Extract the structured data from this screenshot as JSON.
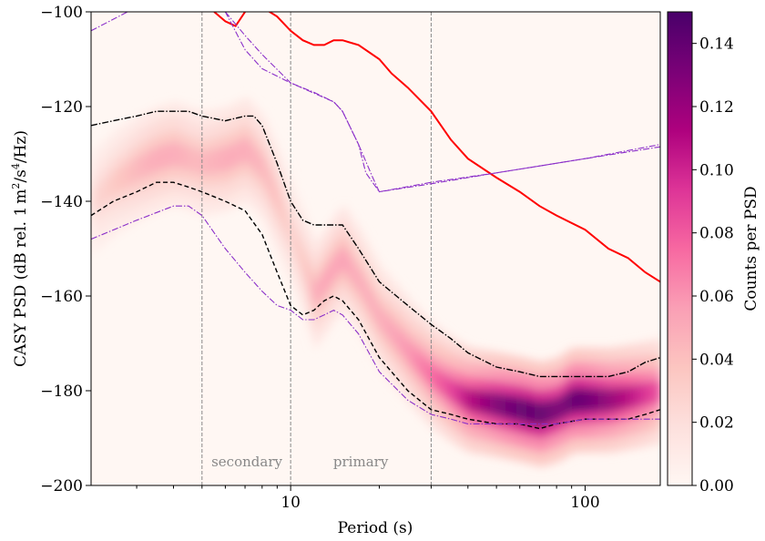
{
  "chart_data": {
    "type": "heatmap",
    "title": "",
    "xlabel": "Period (s)",
    "ylabel": "CASY PSD (dB rel. 1 m²/s⁴/Hz)",
    "ylabel_parts": {
      "prefix": "CASY PSD (dB rel. 1",
      "m": "m",
      "exp2": "2",
      "slash_s": "/s",
      "exp4": "4",
      "suffix": "/Hz)"
    },
    "x_scale": "log",
    "xlim": [
      2.1,
      180
    ],
    "ylim": [
      -200,
      -100
    ],
    "x_ticks": [
      {
        "value": 10,
        "label": "10"
      },
      {
        "value": 100,
        "label": "100"
      }
    ],
    "y_ticks": [
      {
        "value": -200,
        "label": "−200"
      },
      {
        "value": -180,
        "label": "−180"
      },
      {
        "value": -160,
        "label": "−160"
      },
      {
        "value": -140,
        "label": "−140"
      },
      {
        "value": -120,
        "label": "−120"
      },
      {
        "value": -100,
        "label": "−100"
      }
    ],
    "colorbar": {
      "label": "Counts per PSD",
      "range": [
        0,
        0.15
      ],
      "ticks": [
        {
          "value": 0.0,
          "label": "0.00"
        },
        {
          "value": 0.02,
          "label": "0.02"
        },
        {
          "value": 0.04,
          "label": "0.04"
        },
        {
          "value": 0.06,
          "label": "0.06"
        },
        {
          "value": 0.08,
          "label": "0.08"
        },
        {
          "value": 0.1,
          "label": "0.10"
        },
        {
          "value": 0.12,
          "label": "0.12"
        },
        {
          "value": 0.14,
          "label": "0.14"
        }
      ],
      "colors": [
        "#fff7f3",
        "#fde0dd",
        "#fcc5c0",
        "#fa9fb5",
        "#f768a1",
        "#dd3497",
        "#ae017e",
        "#7a0177",
        "#49006a"
      ]
    },
    "vlines": [
      5,
      10,
      30
    ],
    "annotations": [
      {
        "text": "secondary",
        "x": 7.1,
        "y": -195
      },
      {
        "text": "primary",
        "x": 17.3,
        "y": -195
      }
    ],
    "mode_track": [
      {
        "x": 2.1,
        "y": -140,
        "d": 0.025
      },
      {
        "x": 2.5,
        "y": -136,
        "d": 0.035
      },
      {
        "x": 3.0,
        "y": -133,
        "d": 0.045
      },
      {
        "x": 3.5,
        "y": -131,
        "d": 0.05
      },
      {
        "x": 4.0,
        "y": -130,
        "d": 0.05
      },
      {
        "x": 4.5,
        "y": -131,
        "d": 0.045
      },
      {
        "x": 5.0,
        "y": -132,
        "d": 0.045
      },
      {
        "x": 6.0,
        "y": -131,
        "d": 0.05
      },
      {
        "x": 7.0,
        "y": -129,
        "d": 0.05
      },
      {
        "x": 8.0,
        "y": -133,
        "d": 0.045
      },
      {
        "x": 9.0,
        "y": -140,
        "d": 0.04
      },
      {
        "x": 10.0,
        "y": -147,
        "d": 0.03
      },
      {
        "x": 11.0,
        "y": -153,
        "d": 0.035
      },
      {
        "x": 12.0,
        "y": -160,
        "d": 0.05
      },
      {
        "x": 13.0,
        "y": -157,
        "d": 0.055
      },
      {
        "x": 14.0,
        "y": -154,
        "d": 0.055
      },
      {
        "x": 15.0,
        "y": -152,
        "d": 0.055
      },
      {
        "x": 17.0,
        "y": -157,
        "d": 0.05
      },
      {
        "x": 20.0,
        "y": -165,
        "d": 0.05
      },
      {
        "x": 25.0,
        "y": -172,
        "d": 0.06
      },
      {
        "x": 30.0,
        "y": -177,
        "d": 0.075
      },
      {
        "x": 35.0,
        "y": -180,
        "d": 0.09
      },
      {
        "x": 40.0,
        "y": -182,
        "d": 0.11
      },
      {
        "x": 50.0,
        "y": -183,
        "d": 0.13
      },
      {
        "x": 60.0,
        "y": -184,
        "d": 0.14
      },
      {
        "x": 70.0,
        "y": -185,
        "d": 0.14
      },
      {
        "x": 80.0,
        "y": -184,
        "d": 0.13
      },
      {
        "x": 90.0,
        "y": -182,
        "d": 0.14
      },
      {
        "x": 100.0,
        "y": -182,
        "d": 0.135
      },
      {
        "x": 120.0,
        "y": -182,
        "d": 0.12
      },
      {
        "x": 150.0,
        "y": -181,
        "d": 0.1
      },
      {
        "x": 180.0,
        "y": -180,
        "d": 0.08
      }
    ],
    "series": [
      {
        "style": "solid",
        "color": "#ff0000",
        "x": [
          5.5,
          6.0,
          6.5,
          7.0,
          7.5,
          8.0,
          9.0,
          10.0,
          11.0,
          12.0,
          13.0,
          14.0,
          15.0,
          17.0,
          20.0,
          22.0,
          25.0,
          30.0,
          35.0,
          40.0,
          50.0,
          60.0,
          70.0,
          80.0,
          100.0,
          120.0,
          140.0,
          160.0,
          180.0
        ],
        "y": [
          -100,
          -102,
          -103,
          -100,
          -98,
          -99,
          -101,
          -104,
          -106,
          -107,
          -107,
          -106,
          -106,
          -107,
          -110,
          -113,
          -116,
          -121,
          -127,
          -131,
          -135,
          -138,
          -141,
          -143,
          -146,
          -150,
          -152,
          -155,
          -157
        ]
      },
      {
        "style": "dashdot",
        "color": "#000000",
        "x": [
          2.1,
          2.5,
          3.0,
          3.5,
          4.0,
          4.5,
          5.0,
          6.0,
          7.0,
          7.5,
          8.0,
          9.0,
          10.0,
          11.0,
          12.0,
          13.0,
          15.0,
          17.0,
          20.0,
          25.0,
          30.0,
          35.0,
          40.0,
          50.0,
          60.0,
          70.0,
          80.0,
          100.0,
          120.0,
          140.0,
          160.0,
          180.0
        ],
        "y": [
          -124,
          -123,
          -122,
          -121,
          -121,
          -121,
          -122,
          -123,
          -122,
          -122,
          -124,
          -132,
          -140,
          -144,
          -145,
          -145,
          -145,
          -150,
          -157,
          -162,
          -166,
          -169,
          -172,
          -175,
          -176,
          -177,
          -177,
          -177,
          -177,
          -176,
          -174,
          -173
        ]
      },
      {
        "style": "dashed",
        "color": "#000000",
        "x": [
          2.1,
          2.5,
          3.0,
          3.5,
          4.0,
          4.5,
          5.0,
          6.0,
          7.0,
          8.0,
          9.0,
          10.0,
          11.0,
          12.0,
          13.0,
          14.0,
          15.0,
          17.0,
          20.0,
          25.0,
          30.0,
          35.0,
          40.0,
          50.0,
          60.0,
          70.0,
          80.0,
          100.0,
          120.0,
          140.0,
          160.0,
          180.0
        ],
        "y": [
          -143,
          -140,
          -138,
          -136,
          -136,
          -137,
          -138,
          -140,
          -142,
          -147,
          -155,
          -162,
          -164,
          -163,
          -161,
          -160,
          -161,
          -165,
          -173,
          -180,
          -184,
          -185,
          -186,
          -187,
          -187,
          -188,
          -187,
          -186,
          -186,
          -186,
          -185,
          -184
        ]
      },
      {
        "style": "dashdot",
        "color": "#8b2fc9",
        "x": [
          2.1,
          3.0,
          4.0,
          4.5,
          5.0,
          6.0,
          7.0,
          8.0,
          9.0,
          10.0,
          11.0,
          12.0,
          13.0,
          14.0,
          15.0,
          17.0,
          20.0,
          25.0,
          30.0,
          35.0,
          40.0,
          50.0,
          60.0,
          70.0,
          80.0,
          100.0,
          120.0,
          140.0,
          160.0,
          180.0
        ],
        "y": [
          -148,
          -144,
          -141,
          -141,
          -143,
          -150,
          -155,
          -159,
          -162,
          -163,
          -165,
          -165,
          -164,
          -163,
          -164,
          -168,
          -176,
          -182,
          -185,
          -186,
          -187,
          -187,
          -187,
          -187,
          -187,
          -186,
          -186,
          -186,
          -186,
          -186
        ]
      },
      {
        "style": "dashdot",
        "color": "#8b2fc9",
        "x": [
          2.1,
          3.0,
          3.5,
          4.0,
          5.0,
          6.0,
          7.0,
          8.0,
          10.0,
          12.0,
          14.0,
          15.0,
          17.0,
          18.0,
          20.0,
          30.0,
          50.0,
          100.0,
          180.0
        ],
        "y": [
          -104,
          -99,
          -96,
          -93,
          -92,
          -100,
          -108,
          -112,
          -115,
          -117,
          -119,
          -121,
          -128,
          -134,
          -138,
          -136,
          -134,
          -131,
          -128
        ]
      },
      {
        "style": "dashdot",
        "color": "#8b2fc9",
        "x": [
          6.0,
          7.0,
          8.0,
          10.0,
          14.0,
          15.0,
          17.0,
          19.0,
          20.0,
          30.0,
          50.0,
          100.0,
          180.0
        ],
        "y": [
          -100,
          -105,
          -109,
          -115,
          -119,
          -121,
          -128,
          -135,
          -138,
          -136.3,
          -134,
          -131,
          -128.5
        ]
      }
    ]
  }
}
